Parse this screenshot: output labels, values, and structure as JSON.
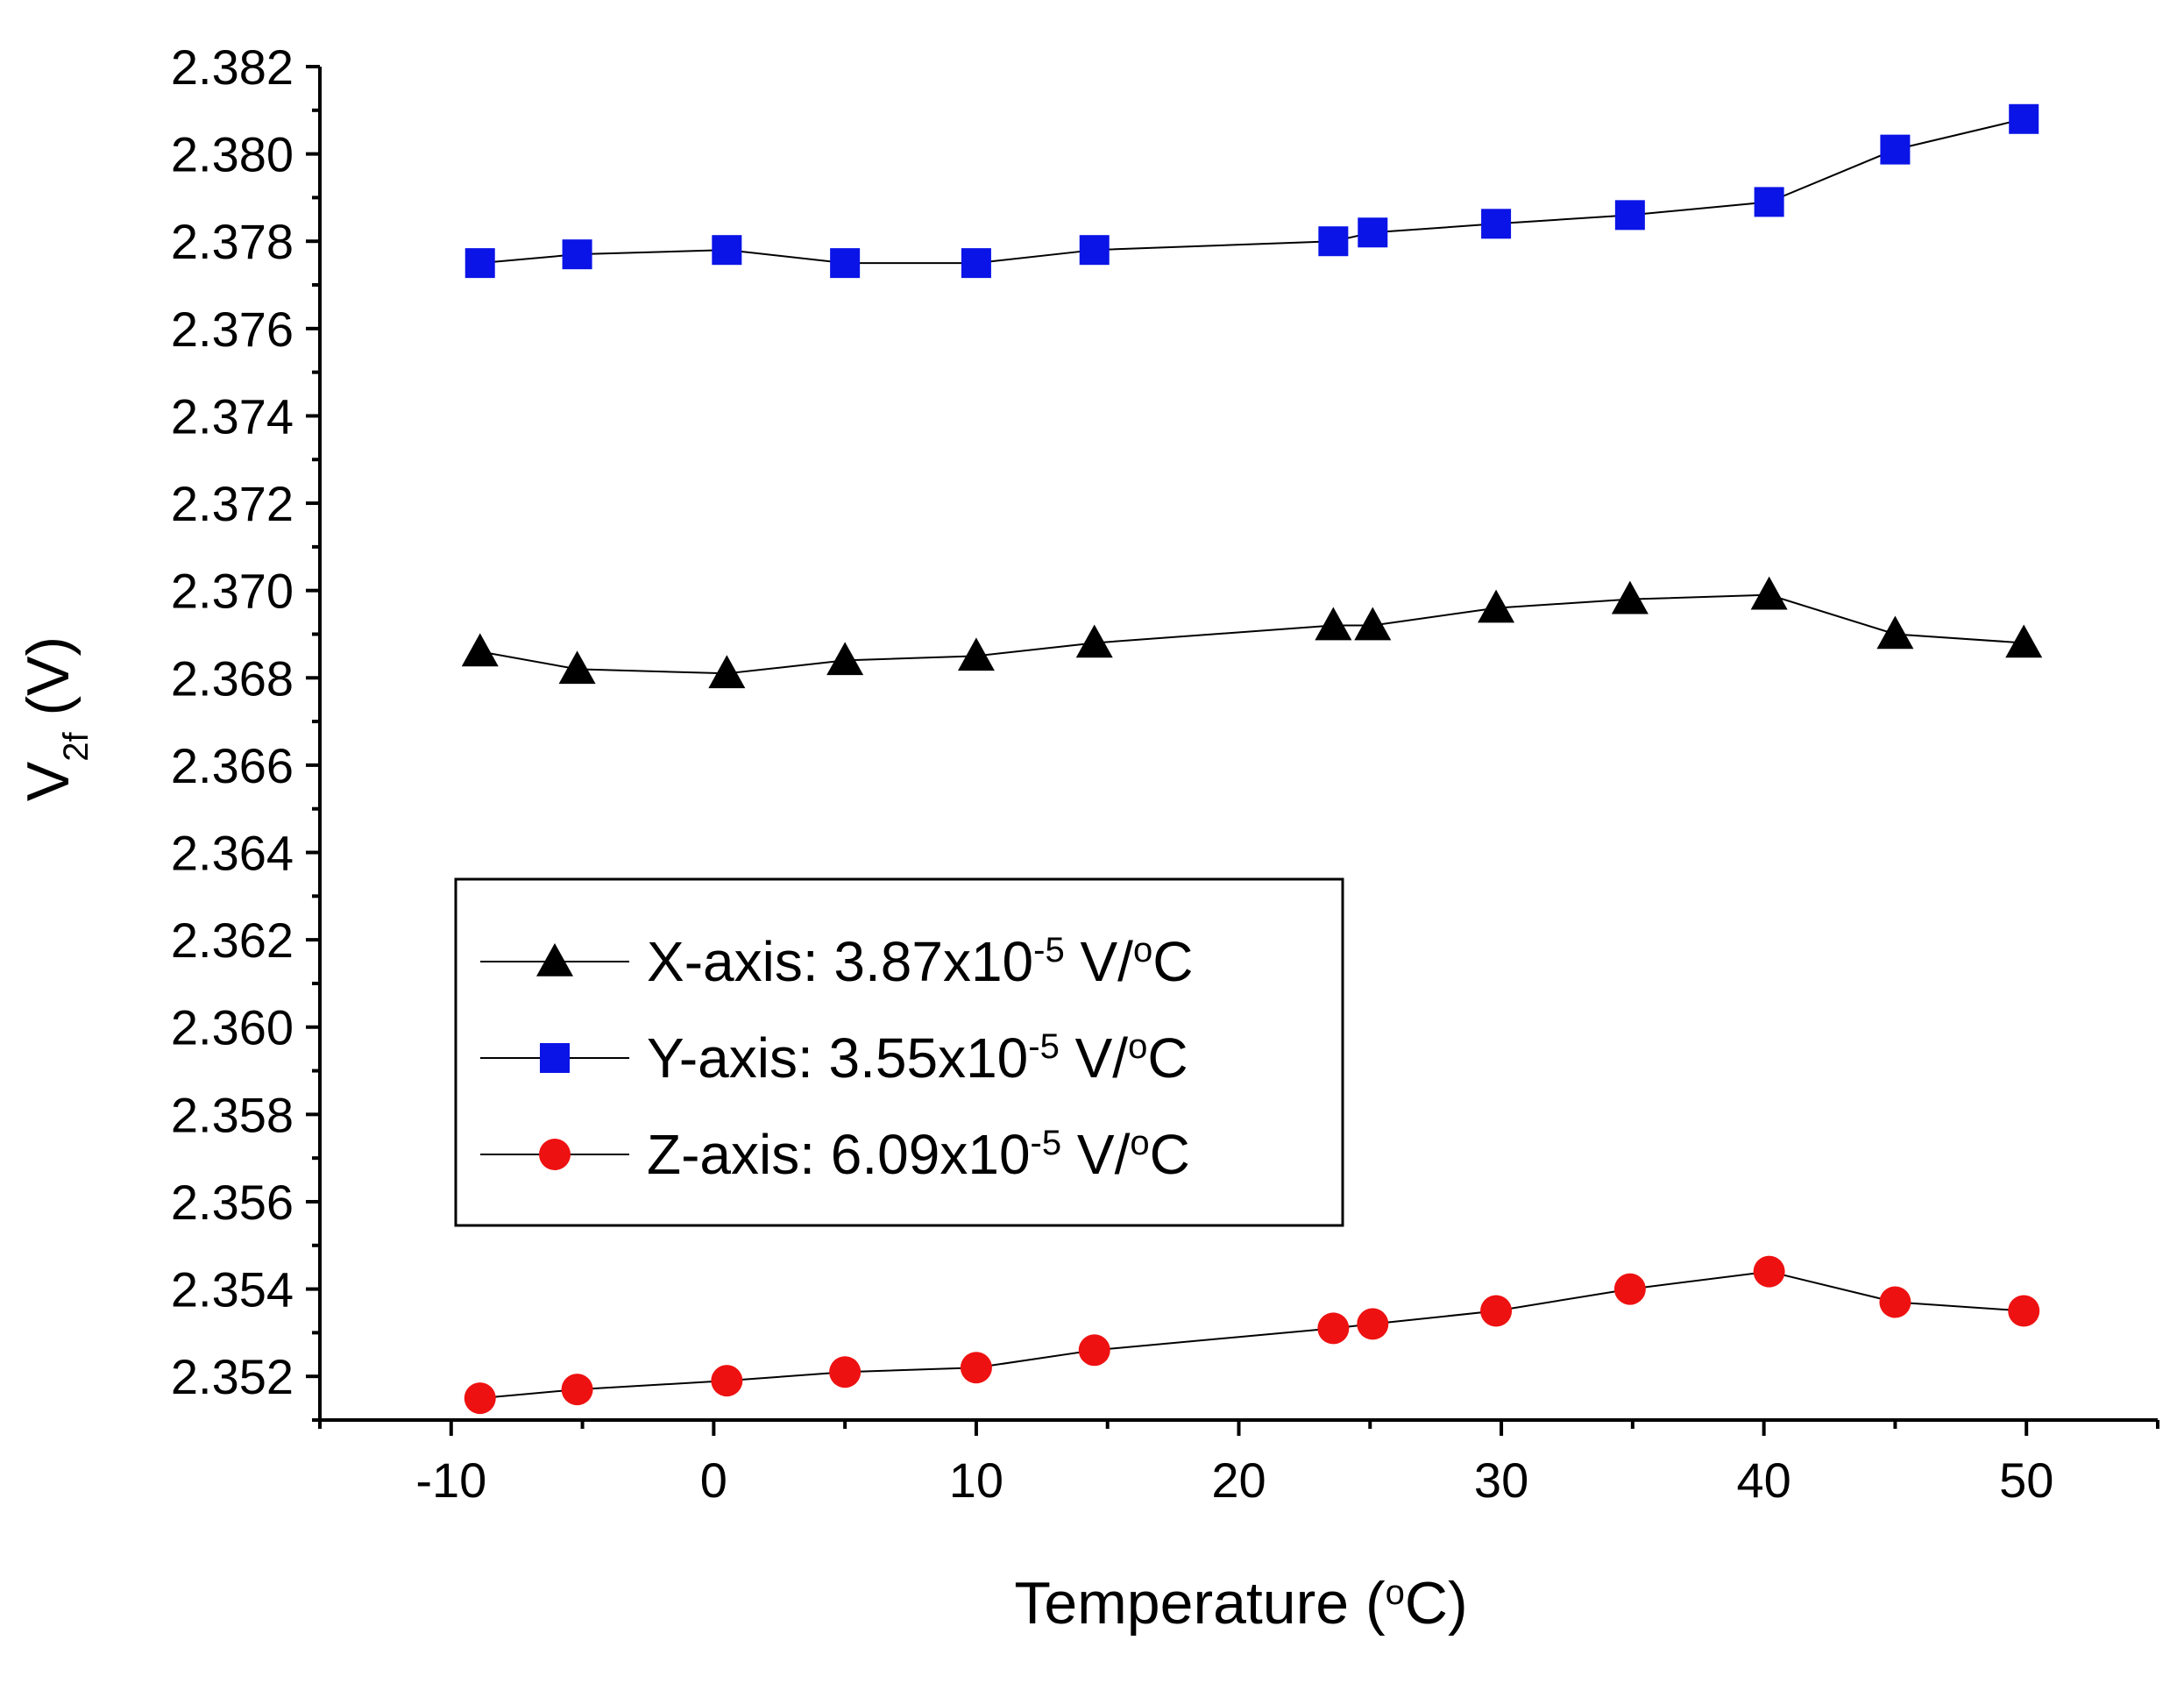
{
  "chart_data": {
    "type": "scatter",
    "xlabel": {
      "main": "Temperature (",
      "sup": "o",
      "tail": "C)"
    },
    "ylabel": {
      "main": "V",
      "sub": "2f",
      "tail": " (V)"
    },
    "xlim": [
      -15,
      55
    ],
    "ylim": [
      2.351,
      2.382
    ],
    "x_ticks": [
      "-10",
      "0",
      "10",
      "20",
      "30",
      "40",
      "50"
    ],
    "y_ticks": [
      "2.352",
      "2.354",
      "2.356",
      "2.358",
      "2.360",
      "2.362",
      "2.364",
      "2.366",
      "2.368",
      "2.370",
      "2.372",
      "2.374",
      "2.376",
      "2.378",
      "2.380",
      "2.382"
    ],
    "grid": false,
    "legend_position": "center-left",
    "series": [
      {
        "name": "X-axis",
        "legend": {
          "pre": "X-axis: 3.87x10",
          "sup": "-5",
          "mid": " V/",
          "sup2": "o",
          "post": "C"
        },
        "marker": "triangle",
        "color": "#000000",
        "x": [
          -8.9,
          -5.2,
          0.5,
          5.0,
          10.0,
          14.5,
          23.6,
          25.1,
          29.8,
          34.9,
          40.2,
          45.0,
          49.9
        ],
        "y": [
          2.3686,
          2.3682,
          2.3681,
          2.3684,
          2.3685,
          2.3688,
          2.3692,
          2.3692,
          2.3696,
          2.3698,
          2.3699,
          2.369,
          2.3688
        ]
      },
      {
        "name": "Y-axis",
        "legend": {
          "pre": "Y-axis: 3.55x10",
          "sup": "-5",
          "mid": " V/",
          "sup2": "o",
          "post": "C"
        },
        "marker": "square",
        "color": "#0a14e6",
        "x": [
          -8.9,
          -5.2,
          0.5,
          5.0,
          10.0,
          14.5,
          23.6,
          25.1,
          29.8,
          34.9,
          40.2,
          45.0,
          49.9
        ],
        "y": [
          2.3775,
          2.3777,
          2.3778,
          2.3775,
          2.3775,
          2.3778,
          2.378,
          2.3782,
          2.3784,
          2.3786,
          2.3789,
          2.3801,
          2.3808
        ]
      },
      {
        "name": "Z-axis",
        "legend": {
          "pre": "Z-axis: 6.09x10",
          "sup": "-5",
          "mid": " V/",
          "sup2": "o",
          "post": "C"
        },
        "marker": "circle",
        "color": "#ee1111",
        "x": [
          -8.9,
          -5.2,
          0.5,
          5.0,
          10.0,
          14.5,
          23.6,
          25.1,
          29.8,
          34.9,
          40.2,
          45.0,
          49.9
        ],
        "y": [
          2.3515,
          2.3517,
          2.3519,
          2.3521,
          2.3522,
          2.3526,
          2.3531,
          2.3532,
          2.3535,
          2.354,
          2.3544,
          2.3537,
          2.3535
        ]
      }
    ]
  }
}
